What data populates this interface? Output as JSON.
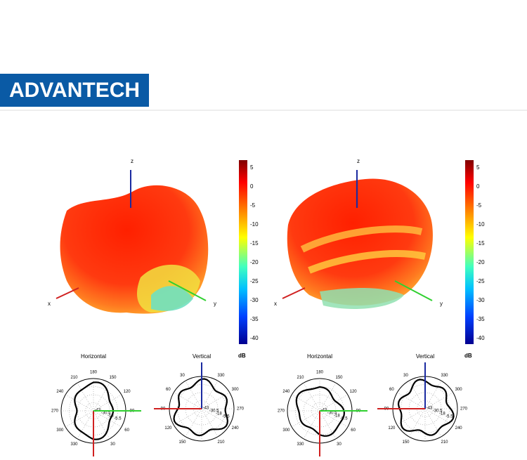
{
  "logo": "ADVANTECH",
  "patterns": [
    {
      "axis_labels": {
        "z": "z",
        "x": "x",
        "y": "y"
      },
      "colorbar": {
        "ticks": [
          "5",
          "0",
          "-5",
          "-10",
          "-15",
          "-20",
          "-25",
          "-30",
          "-35",
          "-40"
        ],
        "unit": "dB"
      }
    },
    {
      "axis_labels": {
        "z": "z",
        "x": "x",
        "y": "y"
      },
      "colorbar": {
        "ticks": [
          "5",
          "0",
          "-5",
          "-10",
          "-15",
          "-20",
          "-25",
          "-30",
          "-35",
          "-40"
        ],
        "unit": "dB"
      }
    }
  ],
  "polar_plots": [
    {
      "title": "Horizontal",
      "angle_labels": [
        "180",
        "150",
        "120",
        "90",
        "60",
        "30",
        "330",
        "300",
        "270",
        "240",
        "210"
      ],
      "radial_labels": [
        "-43",
        "-30.5",
        "-18",
        "-5.5"
      ]
    },
    {
      "title": "Vertical",
      "angle_labels": [
        "330",
        "300",
        "270",
        "240",
        "210",
        "150",
        "120",
        "90",
        "60",
        "30"
      ],
      "radial_labels": [
        "-43",
        "-30.5",
        "-18",
        "-5.5"
      ]
    },
    {
      "title": "Horizontal",
      "angle_labels": [
        "180",
        "150",
        "120",
        "90",
        "60",
        "30",
        "330",
        "300",
        "270",
        "240",
        "210"
      ],
      "radial_labels": [
        "-43",
        "-30.5",
        "-18",
        "-5.5"
      ]
    },
    {
      "title": "Vertical",
      "angle_labels": [
        "330",
        "300",
        "270",
        "240",
        "210",
        "150",
        "120",
        "90",
        "60",
        "30"
      ],
      "radial_labels": [
        "-43",
        "-30.5",
        "-18",
        "-5.5"
      ]
    }
  ]
}
